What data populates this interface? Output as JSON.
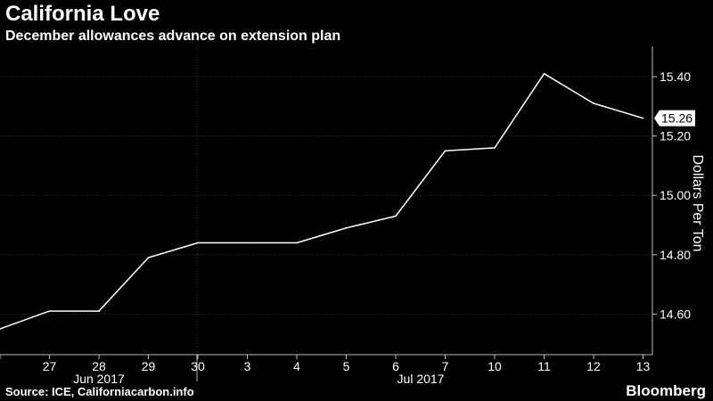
{
  "header": {
    "title": "California Love",
    "subtitle": "December allowances advance on extension plan"
  },
  "footer": {
    "source": "Source: ICE, Californiacarbon.info",
    "brand": "Bloomberg"
  },
  "colors": {
    "background": "#000000",
    "line": "#ffffff",
    "grid": "#3a3a3a",
    "axis": "#bdbdbd"
  },
  "chart_data": {
    "type": "line",
    "title": "California Love",
    "subtitle": "December allowances advance on extension plan",
    "xlabel": "",
    "ylabel": "Dollars Per Ton",
    "x": [
      "2017-06-26",
      "2017-06-27",
      "2017-06-28",
      "2017-06-29",
      "2017-06-30",
      "2017-07-03",
      "2017-07-04",
      "2017-07-05",
      "2017-07-06",
      "2017-07-07",
      "2017-07-10",
      "2017-07-11",
      "2017-07-12",
      "2017-07-13"
    ],
    "categories": [
      "",
      "27",
      "28",
      "29",
      "30",
      "3",
      "4",
      "5",
      "6",
      "7",
      "10",
      "11",
      "12",
      "13"
    ],
    "month_labels": [
      "Jun 2017",
      "Jul 2017"
    ],
    "series": [
      {
        "values": [
          14.55,
          14.61,
          14.61,
          14.79,
          14.84,
          14.84,
          14.84,
          14.89,
          14.93,
          15.15,
          15.16,
          15.41,
          15.31,
          15.26
        ]
      }
    ],
    "last_value_label": "15.26",
    "ylim": [
      14.5,
      15.5
    ],
    "yticks": [
      14.6,
      14.8,
      15.0,
      15.2,
      15.4
    ],
    "ytick_labels": [
      "14.60",
      "14.80",
      "15.00",
      "15.20",
      "15.40"
    ],
    "y_axis_side": "right",
    "grid": true
  }
}
